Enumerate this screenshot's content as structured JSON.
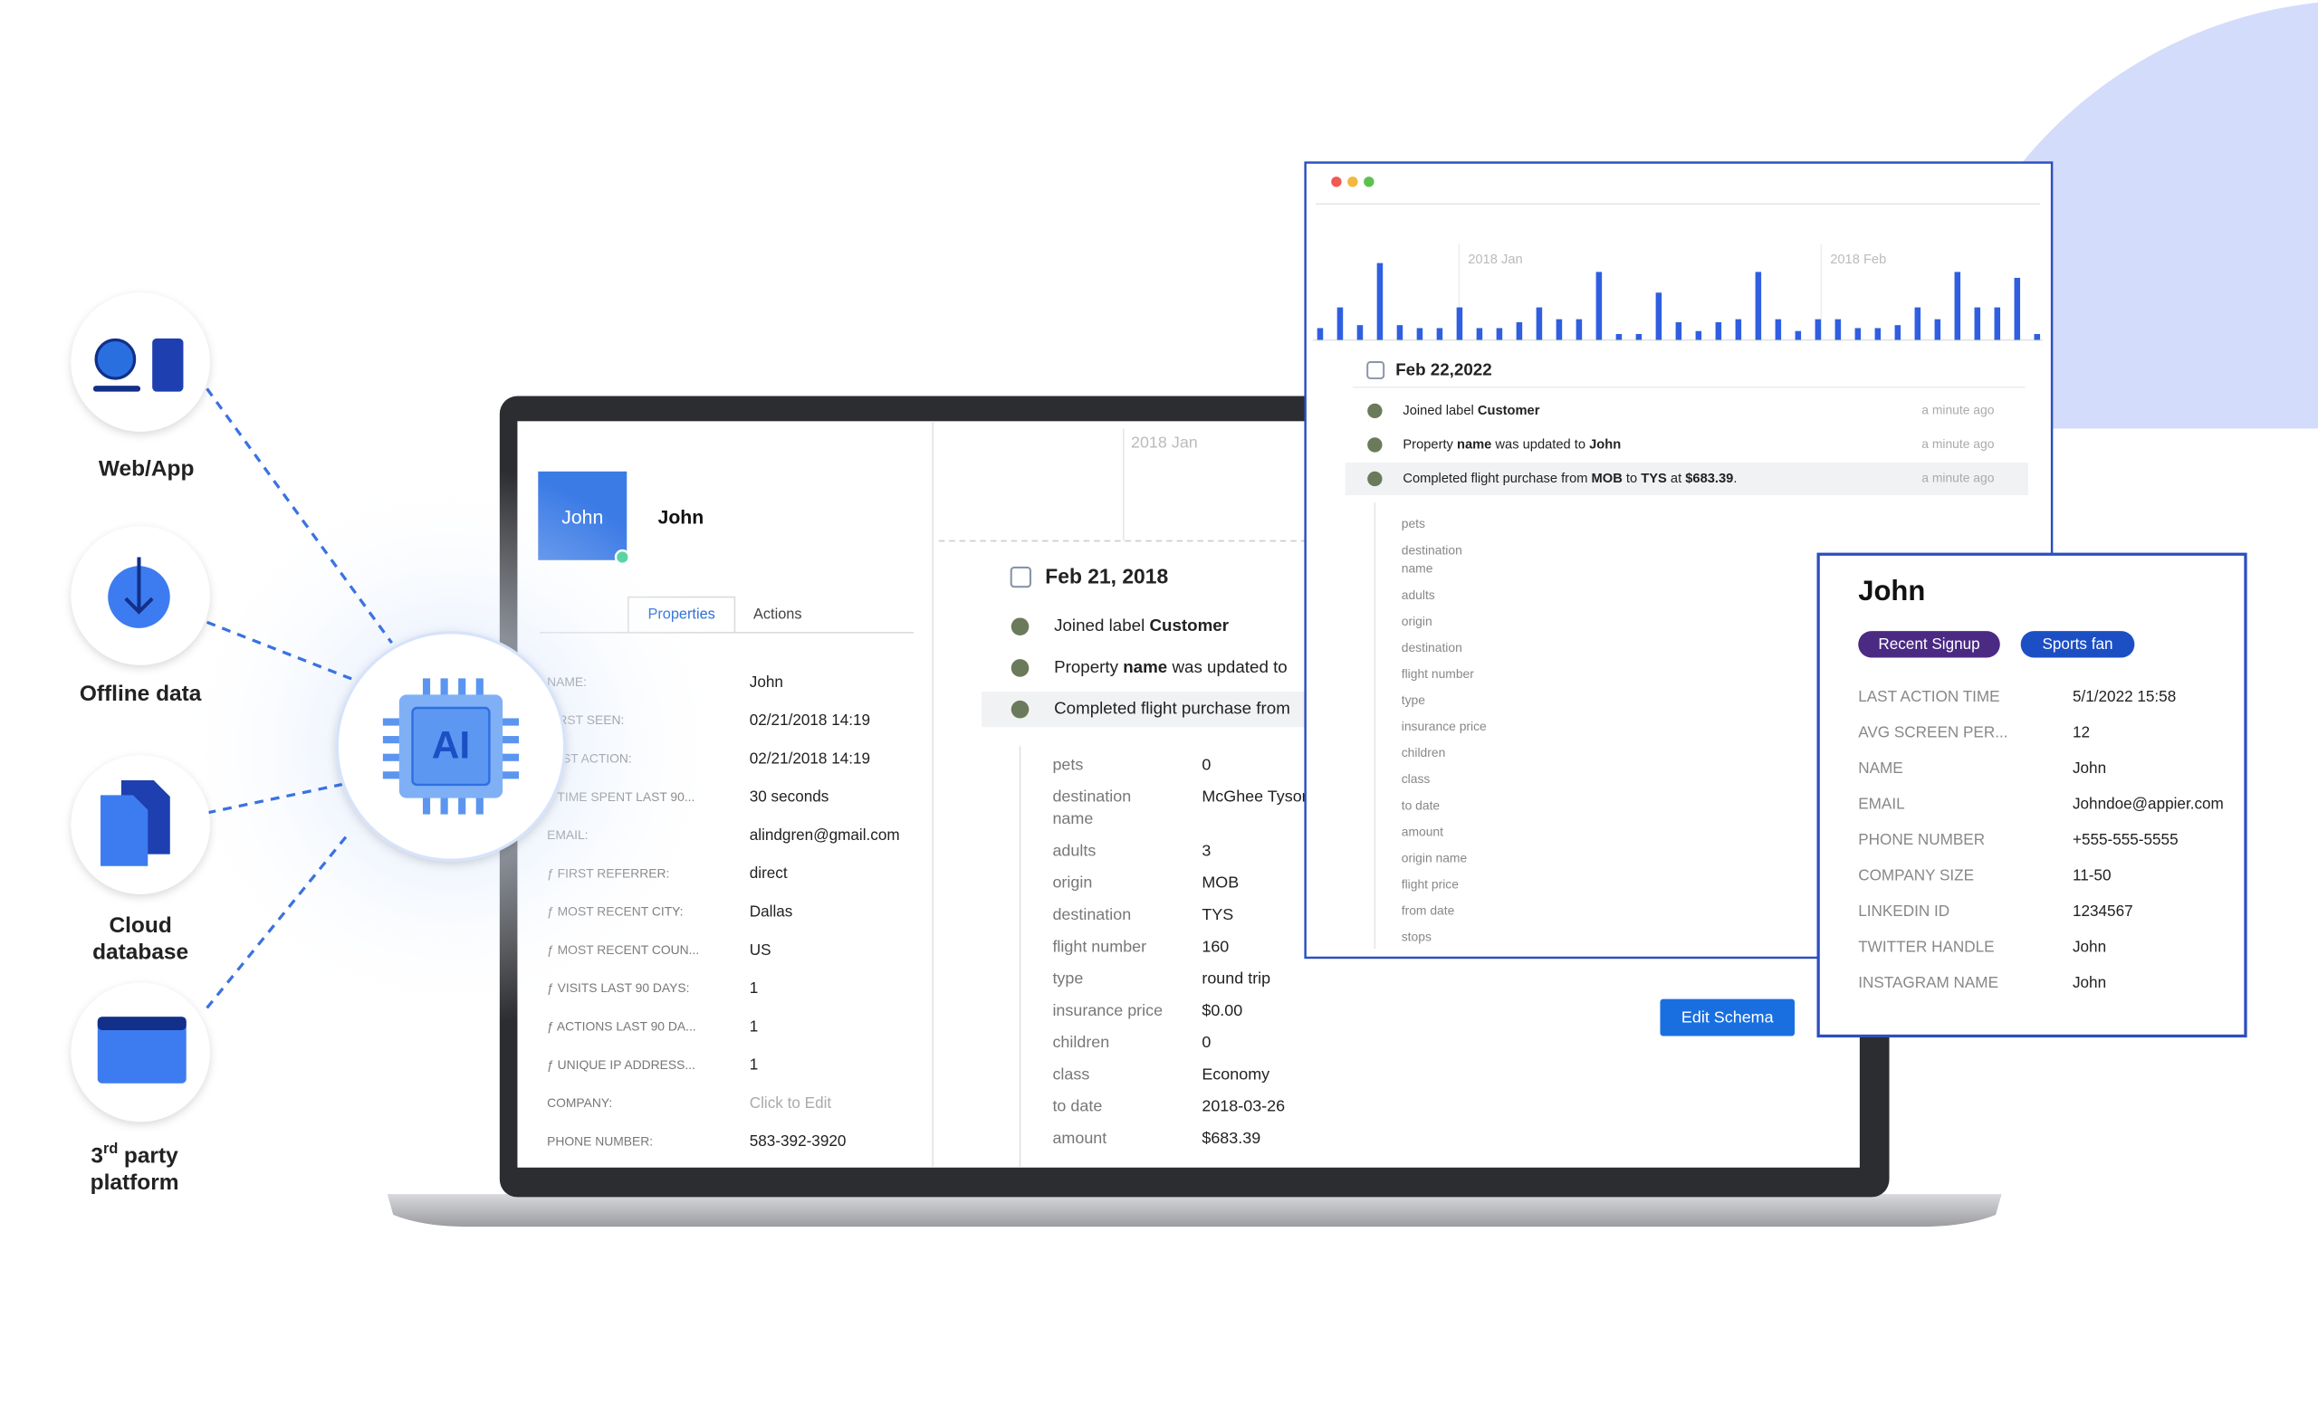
{
  "sources": [
    {
      "label_lines": [
        "Web/App"
      ]
    },
    {
      "label_lines": [
        "Offline data"
      ]
    },
    {
      "label_lines": [
        "Cloud",
        "database"
      ]
    },
    {
      "ordinal": "3",
      "suffix": "rd",
      "label_lines": [
        "party",
        "platform"
      ]
    }
  ],
  "ai_chip": {
    "label": "AI"
  },
  "profile": {
    "avatar_label": "John",
    "name": "John",
    "tabs": [
      "Properties",
      "Actions"
    ],
    "properties": [
      {
        "label": "NAME:",
        "value": "John"
      },
      {
        "label": "FIRST SEEN:",
        "value": "02/21/2018 14:19"
      },
      {
        "label": "LAST ACTION:",
        "value": "02/21/2018 14:19"
      },
      {
        "label": "ƒ TIME SPENT LAST 90...",
        "value": "30 seconds"
      },
      {
        "label": "EMAIL:",
        "value": "alindgren@gmail.com"
      },
      {
        "label": "ƒ FIRST REFERRER:",
        "value": "direct"
      },
      {
        "label": "ƒ MOST RECENT CITY:",
        "value": "Dallas"
      },
      {
        "label": "ƒ MOST RECENT COUN...",
        "value": "US"
      },
      {
        "label": "ƒ VISITS LAST 90 DAYS:",
        "value": "1"
      },
      {
        "label": "ƒ ACTIONS LAST 90 DA...",
        "value": "1"
      },
      {
        "label": "ƒ UNIQUE IP ADDRESS...",
        "value": "1"
      },
      {
        "label": "COMPANY:",
        "value": "Click to Edit"
      },
      {
        "label": "PHONE NUMBER:",
        "value": "583-392-3920"
      }
    ]
  },
  "timeline": {
    "axis_label": "2018 Jan",
    "date": "Feb 21, 2018",
    "events": [
      {
        "segments": [
          {
            "text": "Joined label "
          },
          {
            "text": "Customer",
            "bold": true
          }
        ]
      },
      {
        "segments": [
          {
            "text": "Property "
          },
          {
            "text": "name",
            "bold": true
          },
          {
            "text": " was updated to"
          }
        ]
      },
      {
        "segments": [
          {
            "text": "Completed flight purchase from"
          }
        ]
      }
    ],
    "details": [
      {
        "label": "pets",
        "value": "0"
      },
      {
        "label_lines": [
          "destination",
          "name"
        ],
        "value": "McGhee Tyson"
      },
      {
        "label": "adults",
        "value": "3"
      },
      {
        "label": "origin",
        "value": "MOB"
      },
      {
        "label": "destination",
        "value": "TYS"
      },
      {
        "label": "flight number",
        "value": "160"
      },
      {
        "label": "type",
        "value": "round trip"
      },
      {
        "label": "insurance price",
        "value": "$0.00"
      },
      {
        "label": "children",
        "value": "0"
      },
      {
        "label": "class",
        "value": "Economy"
      },
      {
        "label": "to date",
        "value": "2018-03-26"
      },
      {
        "label": "amount",
        "value": "$683.39"
      }
    ],
    "button": "Edit Schema"
  },
  "activity_window": {
    "chart": {
      "type": "bar",
      "labels": [
        "2018 Jan",
        "2018 Feb"
      ],
      "color": "#2f5fe0",
      "values": [
        8,
        22,
        10,
        52,
        10,
        8,
        8,
        22,
        8,
        8,
        12,
        22,
        14,
        14,
        46,
        4,
        4,
        32,
        12,
        6,
        12,
        14,
        46,
        14,
        6,
        14,
        14,
        8,
        8,
        10,
        22,
        14,
        46,
        22,
        22,
        42,
        4
      ]
    },
    "date": "Feb 22,2022",
    "events": [
      {
        "segments": [
          {
            "text": "Joined label "
          },
          {
            "text": "Customer",
            "bold": true
          }
        ],
        "time": "a minute ago"
      },
      {
        "segments": [
          {
            "text": "Property "
          },
          {
            "text": "name",
            "bold": true
          },
          {
            "text": " was updated to "
          },
          {
            "text": "John",
            "bold": true
          }
        ],
        "time": "a minute ago"
      },
      {
        "segments": [
          {
            "text": "Completed flight purchase from "
          },
          {
            "text": "MOB",
            "bold": true
          },
          {
            "text": " to "
          },
          {
            "text": "TYS",
            "bold": true
          },
          {
            "text": " at "
          },
          {
            "text": "$683.39",
            "bold": true
          },
          {
            "text": "."
          }
        ],
        "time": "a minute ago"
      }
    ],
    "fields": [
      {
        "label": "pets"
      },
      {
        "label_lines": [
          "destination",
          "name"
        ]
      },
      {
        "label": "adults"
      },
      {
        "label": "origin"
      },
      {
        "label": "destination"
      },
      {
        "label": "flight number"
      },
      {
        "label": "type"
      },
      {
        "label": "insurance price"
      },
      {
        "label": "children"
      },
      {
        "label": "class"
      },
      {
        "label": "to date"
      },
      {
        "label": "amount"
      },
      {
        "label": "origin name"
      },
      {
        "label": "flight price"
      },
      {
        "label": "from date"
      },
      {
        "label": "stops"
      }
    ]
  },
  "contact_card": {
    "name": "John",
    "tags": [
      {
        "text": "Recent Signup",
        "color": "#4b2a83"
      },
      {
        "text": "Sports fan",
        "color": "#1d4fc4"
      }
    ],
    "rows": [
      {
        "label": "LAST ACTION TIME",
        "value": "5/1/2022 15:58"
      },
      {
        "label": "AVG SCREEN PER...",
        "value": "12"
      },
      {
        "label": "NAME",
        "value": "John"
      },
      {
        "label": "EMAIL",
        "value": "Johndoe@appier.com"
      },
      {
        "label": "PHONE NUMBER",
        "value": "+555-555-5555"
      },
      {
        "label": "COMPANY SIZE",
        "value": "11-50"
      },
      {
        "label": "LINKEDIN ID",
        "value": "1234567"
      },
      {
        "label": "TWITTER HANDLE",
        "value": "John"
      },
      {
        "label": "INSTAGRAM NAME",
        "value": "John"
      }
    ]
  }
}
